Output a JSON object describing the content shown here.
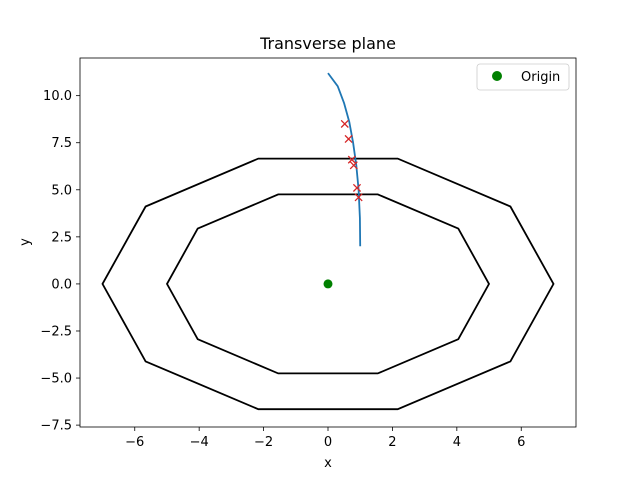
{
  "chart_data": {
    "type": "line",
    "title": "Transverse plane",
    "xlabel": "x",
    "ylabel": "y",
    "xlim": [
      -7.7,
      7.7
    ],
    "ylim": [
      -7.6,
      12.0
    ],
    "xticks": [
      -6,
      -4,
      -2,
      0,
      2,
      4,
      6
    ],
    "yticks": [
      -7.5,
      -5.0,
      -2.5,
      0.0,
      2.5,
      5.0,
      7.5,
      10.0
    ],
    "xtick_labels": [
      "−6",
      "−4",
      "−2",
      "0",
      "2",
      "4",
      "6"
    ],
    "ytick_labels": [
      "−7.5",
      "−5.0",
      "−2.5",
      "0.0",
      "2.5",
      "5.0",
      "7.5",
      "10.0"
    ],
    "grid": false,
    "legend": {
      "placement": "top-right",
      "entries": [
        {
          "label": "Origin",
          "marker": "circle",
          "color": "#008000"
        }
      ]
    },
    "colors": {
      "trajectory": "#1f77b4",
      "hits": "#d62728",
      "layers": "#000000",
      "origin": "#008000"
    },
    "layers": [
      {
        "name": "inner",
        "radius": 5,
        "sides": 10,
        "vertices": [
          [
            5.0,
            0.0
          ],
          [
            4.045,
            2.939
          ],
          [
            1.545,
            4.755
          ],
          [
            -1.545,
            4.755
          ],
          [
            -4.045,
            2.939
          ],
          [
            -5.0,
            0.0
          ],
          [
            -4.045,
            -2.939
          ],
          [
            -1.545,
            -4.755
          ],
          [
            1.545,
            -4.755
          ],
          [
            4.045,
            -2.939
          ]
        ]
      },
      {
        "name": "outer",
        "radius": 7,
        "sides": 10,
        "vertices": [
          [
            7.0,
            0.0
          ],
          [
            5.663,
            4.114
          ],
          [
            2.163,
            6.657
          ],
          [
            -2.163,
            6.657
          ],
          [
            -5.663,
            4.114
          ],
          [
            -7.0,
            0.0
          ],
          [
            -5.663,
            -4.114
          ],
          [
            -2.163,
            -6.657
          ],
          [
            2.163,
            -6.657
          ],
          [
            5.663,
            -4.114
          ]
        ]
      }
    ],
    "trajectory": {
      "x": [
        1.0,
        0.99,
        0.95,
        0.88,
        0.78,
        0.66,
        0.5,
        0.3,
        0.0
      ],
      "y": [
        2.0,
        3.5,
        5.0,
        6.3,
        7.5,
        8.6,
        9.6,
        10.5,
        11.2
      ]
    },
    "hits": {
      "x": [
        0.95,
        0.9,
        0.8,
        0.74,
        0.64,
        0.52
      ],
      "y": [
        4.6,
        5.1,
        6.3,
        6.6,
        7.7,
        8.5
      ]
    },
    "origin_point": {
      "x": 0,
      "y": 0,
      "label": "Origin"
    }
  }
}
